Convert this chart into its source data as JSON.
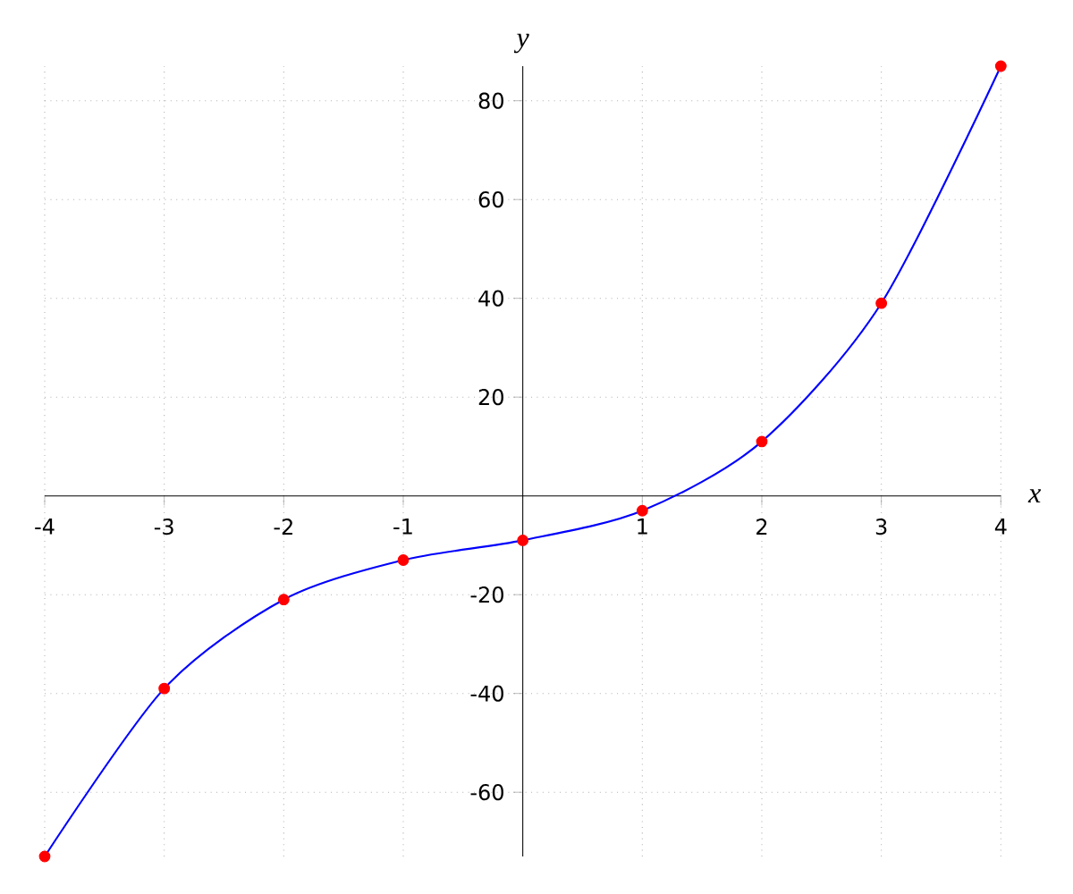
{
  "chart_data": {
    "type": "line",
    "xlabel": "x",
    "ylabel": "y",
    "x": [
      -4,
      -3,
      -2,
      -1,
      0,
      1,
      2,
      3,
      4
    ],
    "series": [
      {
        "color": "#0000ff",
        "values": [
          -73,
          -39,
          -21,
          -13,
          -9,
          -3,
          11,
          39,
          87
        ]
      },
      {
        "type": "scatter",
        "color": "#ff0000",
        "marker": "circle",
        "values": [
          -73,
          -39,
          -21,
          -13,
          -9,
          -3,
          11,
          39,
          87
        ]
      }
    ],
    "xlim": [
      -4,
      4
    ],
    "ylim": [
      -73,
      87
    ],
    "xticks": [
      -4,
      -3,
      -2,
      -1,
      1,
      2,
      3,
      4
    ],
    "yticks": [
      -60,
      -40,
      -20,
      20,
      40,
      60,
      80
    ],
    "grid": true
  }
}
